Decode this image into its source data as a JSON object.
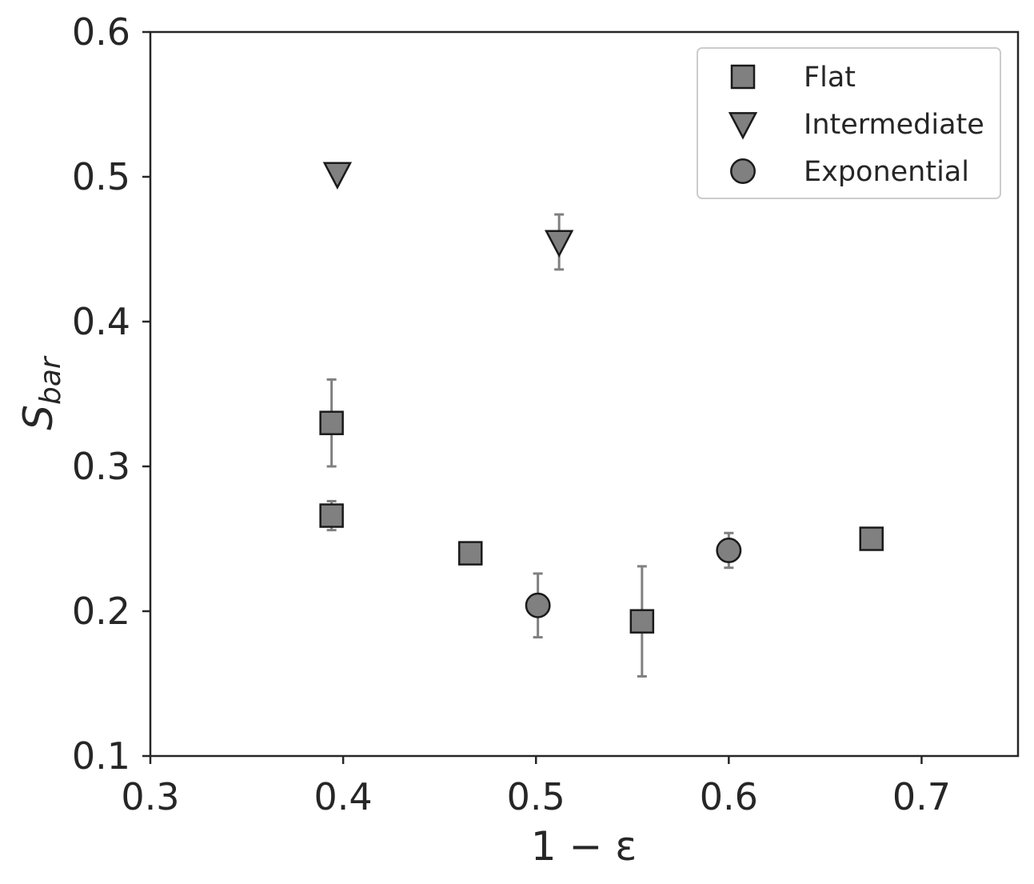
{
  "chart_data": {
    "type": "scatter",
    "xlabel": "1 − ε",
    "ylabel_main": "S",
    "ylabel_sub": "bar",
    "xlim": [
      0.3,
      0.75
    ],
    "ylim": [
      0.1,
      0.6
    ],
    "xticks": [
      0.3,
      0.4,
      0.5,
      0.6,
      0.7
    ],
    "yticks": [
      0.1,
      0.2,
      0.3,
      0.4,
      0.5,
      0.6
    ],
    "xtick_labels": [
      "0.3",
      "0.4",
      "0.5",
      "0.6",
      "0.7"
    ],
    "ytick_labels": [
      "0.1",
      "0.2",
      "0.3",
      "0.4",
      "0.5",
      "0.6"
    ],
    "grid": false,
    "legend_position": "top-right",
    "marker_color": "#808080",
    "marker_edge_color": "#1a1a1a",
    "errorbar_color": "#808080",
    "series": [
      {
        "name": "Flat",
        "marker": "square",
        "points": [
          {
            "x": 0.394,
            "y": 0.33,
            "err": 0.03
          },
          {
            "x": 0.394,
            "y": 0.266,
            "err": 0.01
          },
          {
            "x": 0.466,
            "y": 0.24,
            "err": 0
          },
          {
            "x": 0.555,
            "y": 0.193,
            "err": 0.038
          },
          {
            "x": 0.674,
            "y": 0.25,
            "err": 0
          }
        ]
      },
      {
        "name": "Intermediate",
        "marker": "triangle-down",
        "points": [
          {
            "x": 0.397,
            "y": 0.502,
            "err": 0
          },
          {
            "x": 0.512,
            "y": 0.455,
            "err": 0.019
          }
        ]
      },
      {
        "name": "Exponential",
        "marker": "circle",
        "points": [
          {
            "x": 0.501,
            "y": 0.204,
            "err": 0.022
          },
          {
            "x": 0.6,
            "y": 0.242,
            "err": 0.012
          }
        ]
      }
    ]
  }
}
